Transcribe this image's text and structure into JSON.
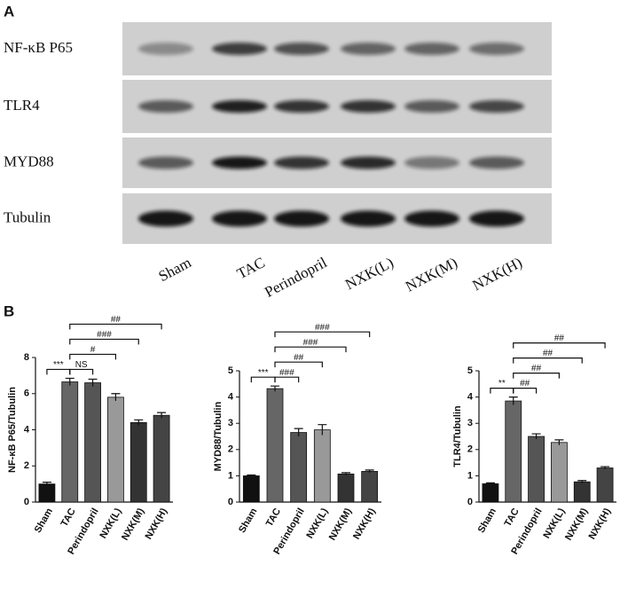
{
  "blot": {
    "label": "A",
    "rows": [
      "NF-κB P65",
      "TLR4",
      "MYD88",
      "Tubulin"
    ],
    "lanes": [
      "Sham",
      "TAC",
      "Perindopril",
      "NXK(L)",
      "NXK(M)",
      "NXK(H)"
    ]
  },
  "panel_b_label": "B",
  "chart_data": [
    {
      "type": "bar",
      "ylabel": "NF-κB P65/Tubulin",
      "categories": [
        "Sham",
        "TAC",
        "Perindopril",
        "NXK(L)",
        "NXK(M)",
        "NXK(H)"
      ],
      "values": [
        1.0,
        6.65,
        6.6,
        5.8,
        4.4,
        4.8
      ],
      "errors": [
        0.1,
        0.2,
        0.2,
        0.2,
        0.15,
        0.15
      ],
      "colors": [
        "#111111",
        "#666666",
        "#555555",
        "#999999",
        "#333333",
        "#444444"
      ],
      "ylim": [
        0,
        8
      ],
      "yticks": [
        0,
        2,
        4,
        6,
        8
      ],
      "comparisons": [
        {
          "label": "***",
          "pair": [
            "Sham",
            "TAC"
          ]
        },
        {
          "label": "NS",
          "pair": [
            "TAC",
            "Perindopril"
          ]
        },
        {
          "label": "#",
          "pair": [
            "TAC",
            "NXK(L)"
          ]
        },
        {
          "label": "###",
          "pair": [
            "TAC",
            "NXK(M)"
          ]
        },
        {
          "label": "##",
          "pair": [
            "TAC",
            "NXK(H)"
          ]
        }
      ]
    },
    {
      "type": "bar",
      "ylabel": "MYD88/Tubulin",
      "categories": [
        "Sham",
        "TAC",
        "Perindopril",
        "NXK(L)",
        "NXK(M)",
        "NXK(H)"
      ],
      "values": [
        1.0,
        4.32,
        2.65,
        2.75,
        1.07,
        1.17
      ],
      "errors": [
        0.03,
        0.1,
        0.15,
        0.2,
        0.05,
        0.05
      ],
      "colors": [
        "#111111",
        "#666666",
        "#555555",
        "#999999",
        "#333333",
        "#444444"
      ],
      "ylim": [
        0,
        5
      ],
      "yticks": [
        0,
        1,
        2,
        3,
        4,
        5
      ],
      "comparisons": [
        {
          "label": "***",
          "pair": [
            "Sham",
            "TAC"
          ]
        },
        {
          "label": "###",
          "pair": [
            "TAC",
            "Perindopril"
          ]
        },
        {
          "label": "##",
          "pair": [
            "TAC",
            "NXK(L)"
          ]
        },
        {
          "label": "###",
          "pair": [
            "TAC",
            "NXK(M)"
          ]
        },
        {
          "label": "###",
          "pair": [
            "TAC",
            "NXK(H)"
          ]
        }
      ]
    },
    {
      "type": "bar",
      "ylabel": "TLR4/Tubulin",
      "categories": [
        "Sham",
        "TAC",
        "Perindopril",
        "NXK(L)",
        "NXK(M)",
        "NXK(H)"
      ],
      "values": [
        0.7,
        3.85,
        2.5,
        2.27,
        0.77,
        1.3
      ],
      "errors": [
        0.03,
        0.15,
        0.1,
        0.1,
        0.05,
        0.05
      ],
      "colors": [
        "#111111",
        "#666666",
        "#555555",
        "#999999",
        "#333333",
        "#444444"
      ],
      "ylim": [
        0,
        5
      ],
      "yticks": [
        0,
        1,
        2,
        3,
        4,
        5
      ],
      "comparisons": [
        {
          "label": "**",
          "pair": [
            "Sham",
            "TAC"
          ]
        },
        {
          "label": "##",
          "pair": [
            "TAC",
            "Perindopril"
          ]
        },
        {
          "label": "##",
          "pair": [
            "TAC",
            "NXK(L)"
          ]
        },
        {
          "label": "##",
          "pair": [
            "TAC",
            "NXK(M)"
          ]
        },
        {
          "label": "##",
          "pair": [
            "TAC",
            "NXK(H)"
          ]
        }
      ]
    }
  ]
}
